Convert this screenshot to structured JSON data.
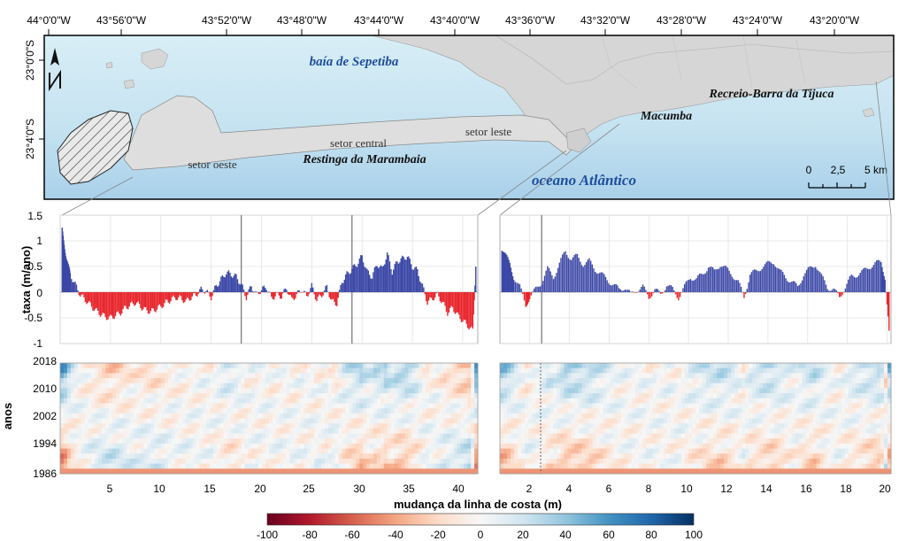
{
  "map": {
    "lon_labels": [
      "44°0'0\"W",
      "43°56'0\"W",
      "43°52'0\"W",
      "43°48'0\"W",
      "43°44'0\"W",
      "43°40'0\"W",
      "43°36'0\"W",
      "43°32'0\"W",
      "43°28'0\"W",
      "43°24'0\"W",
      "43°20'0\"W"
    ],
    "lat_labels": [
      "23°0'0\"S",
      "23°4'0\"S"
    ],
    "bay_label": "baía de Sepetiba",
    "ocean_label": "oceano Atlântico",
    "sector_west": "setor oeste",
    "sector_central": "setor central",
    "sector_east": "setor leste",
    "restinga": "Restinga da Marambaia",
    "macumba": "Macumba",
    "recreio": "Recreio-Barra da Tijuca",
    "scale_labels": [
      "0",
      "2,5",
      "5 km"
    ],
    "north_icon": "north-arrow-icon",
    "colors": {
      "water": "#d2eaf3",
      "deep_water": "#b3d6ec",
      "land": "#d6d6d6",
      "restinga": "#dedede"
    }
  },
  "chart_data": [
    {
      "type": "bar",
      "title": "",
      "ylabel": "taxa (m/ano)",
      "xlabel": "",
      "ylim": [
        -1,
        1.5
      ],
      "xlim": [
        0,
        41.5
      ],
      "yticks": [
        "1.5",
        "1",
        "0.5",
        "0",
        "-0.5",
        "-1"
      ],
      "vlines": [
        18,
        29
      ],
      "x": [
        0.2,
        0.4,
        0.6,
        0.8,
        1,
        1.5,
        2,
        2.5,
        3,
        3.5,
        4,
        4.5,
        5,
        5.5,
        6,
        6.5,
        7,
        7.5,
        8,
        8.5,
        9,
        9.5,
        10,
        10.5,
        11,
        11.5,
        12,
        12.5,
        13,
        13.5,
        14,
        14.5,
        15,
        15.5,
        16,
        16.5,
        17,
        17.5,
        18,
        18.5,
        19,
        19.5,
        20,
        20.5,
        21,
        21.5,
        22,
        22.5,
        23,
        23.5,
        24,
        24.5,
        25,
        25.5,
        26,
        26.5,
        27,
        27.5,
        28,
        28.5,
        29,
        29.5,
        30,
        30.5,
        31,
        31.5,
        32,
        32.5,
        33,
        33.5,
        34,
        34.5,
        35,
        35.5,
        36,
        36.5,
        37,
        37.5,
        38,
        38.5,
        39,
        39.5,
        40,
        40.5,
        41,
        41.3
      ],
      "values": [
        1.2,
        0.95,
        0.7,
        0.5,
        0.35,
        0.15,
        -0.05,
        -0.15,
        -0.25,
        -0.35,
        -0.42,
        -0.48,
        -0.5,
        -0.45,
        -0.4,
        -0.3,
        -0.25,
        -0.2,
        -0.28,
        -0.35,
        -0.38,
        -0.33,
        -0.28,
        -0.2,
        -0.15,
        -0.1,
        -0.12,
        -0.18,
        -0.1,
        -0.05,
        0.05,
        0.02,
        -0.1,
        0.12,
        0.25,
        0.38,
        0.35,
        0.3,
        0.15,
        -0.1,
        0.12,
        -0.05,
        0.05,
        0.1,
        -0.12,
        -0.05,
        -0.08,
        0.08,
        -0.15,
        -0.05,
        0.05,
        -0.08,
        0.12,
        -0.15,
        -0.05,
        0.1,
        -0.18,
        -0.22,
        0.2,
        0.35,
        0.45,
        0.55,
        0.7,
        0.4,
        0.3,
        0.55,
        0.45,
        0.75,
        0.4,
        0.6,
        0.65,
        0.7,
        0.5,
        0.42,
        0.12,
        -0.2,
        -0.12,
        -0.05,
        -0.2,
        -0.4,
        -0.3,
        -0.45,
        -0.55,
        -0.65,
        -0.75,
        0.5
      ],
      "xticks": [
        "5",
        "10",
        "15",
        "20",
        "25",
        "30",
        "35",
        "40"
      ],
      "colors": {
        "positive": "#3b47a6",
        "negative": "#e8242b"
      }
    },
    {
      "type": "bar",
      "title": "",
      "ylabel": "",
      "xlabel": "",
      "ylim": [
        -1,
        1.5
      ],
      "xlim": [
        0.5,
        20.2
      ],
      "vlines": [
        2.6
      ],
      "x": [
        0.6,
        0.8,
        1,
        1.2,
        1.5,
        1.8,
        2,
        2.3,
        2.6,
        2.9,
        3.2,
        3.5,
        3.8,
        4.1,
        4.4,
        4.7,
        5,
        5.3,
        5.6,
        5.9,
        6.2,
        6.5,
        6.8,
        7.1,
        7.4,
        7.7,
        8,
        8.3,
        8.6,
        8.9,
        9.2,
        9.5,
        9.8,
        10.1,
        10.4,
        10.7,
        11,
        11.3,
        11.6,
        11.9,
        12.2,
        12.5,
        12.8,
        13.1,
        13.4,
        13.7,
        14,
        14.3,
        14.6,
        14.9,
        15.2,
        15.5,
        15.8,
        16.1,
        16.4,
        16.7,
        17,
        17.3,
        17.6,
        17.9,
        18.2,
        18.5,
        18.8,
        19.1,
        19.4,
        19.7,
        19.9,
        20.1
      ],
      "values": [
        0.85,
        0.7,
        0.55,
        0.3,
        0.1,
        -0.25,
        -0.1,
        0.05,
        0.2,
        0.45,
        0.3,
        0.55,
        0.8,
        0.65,
        0.7,
        0.55,
        0.6,
        0.45,
        0.35,
        0.25,
        0.15,
        0.05,
        0.1,
        -0.05,
        0.05,
        0.1,
        -0.1,
        0.05,
        -0.05,
        0.15,
        0.05,
        -0.1,
        0.1,
        0.3,
        0.25,
        0.35,
        0.5,
        0.4,
        0.55,
        0.45,
        0.35,
        0.2,
        -0.1,
        0.35,
        0.4,
        0.5,
        0.55,
        0.6,
        0.4,
        0.3,
        0.2,
        0.1,
        0.35,
        0.45,
        0.55,
        0.3,
        0.1,
        0.05,
        -0.1,
        0.1,
        0.3,
        0.35,
        0.4,
        0.5,
        0.55,
        0.6,
        0.3,
        -0.75
      ],
      "xticks": [
        "2",
        "4",
        "6",
        "8",
        "10",
        "12",
        "14",
        "16",
        "18",
        "20"
      ],
      "colors": {
        "positive": "#3b47a6",
        "negative": "#e8242b"
      }
    },
    {
      "type": "heatmap",
      "ylabel": "anos",
      "xlabel": "mudança da linha de costa (m)",
      "yticks": [
        "2018",
        "2010",
        "2002",
        "1994",
        "1986"
      ],
      "xticks_left": [
        "5",
        "10",
        "15",
        "20",
        "25",
        "30",
        "35",
        "40"
      ],
      "xticks_right": [
        "2",
        "4",
        "6",
        "8",
        "10",
        "12",
        "14",
        "16",
        "18",
        "20"
      ],
      "colorbar_ticks": [
        "-100",
        "-80",
        "-60",
        "-40",
        "-20",
        "0",
        "20",
        "40",
        "60",
        "80",
        "100"
      ],
      "colorbar_range": [
        -100,
        100
      ],
      "colorbar_colors": [
        "#67001f",
        "#b2182b",
        "#d6604d",
        "#f4a582",
        "#fddbc7",
        "#f7f7f7",
        "#d1e5f0",
        "#92c5de",
        "#4393c3",
        "#2166ac",
        "#053061"
      ]
    }
  ]
}
